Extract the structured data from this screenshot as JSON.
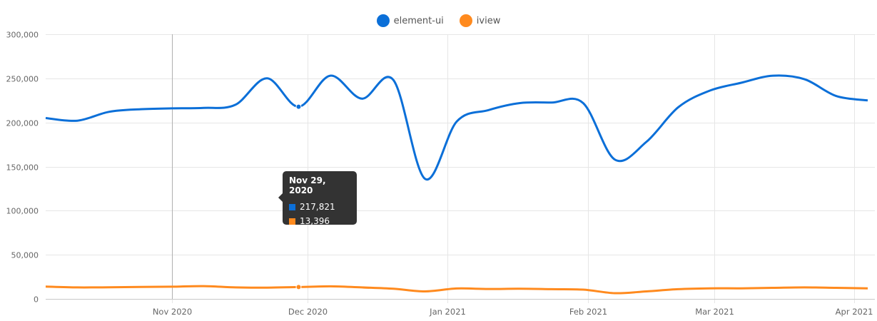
{
  "legend": {
    "series1": "element-ui",
    "series2": "iview"
  },
  "colors": {
    "element_ui": "#0b6fd8",
    "iview": "#ff8a1e",
    "grid": "#e6e6e6",
    "crosshair": "#b0b0b0",
    "tooltip_bg": "#333333"
  },
  "tooltip": {
    "date": "Nov 29, 2020",
    "element_ui": "217,821",
    "iview": "13,396"
  },
  "chart_data": {
    "type": "line",
    "x_ticks": [
      "Nov 2020",
      "Dec 2020",
      "Jan 2021",
      "Feb 2021",
      "Mar 2021",
      "Apr 2021"
    ],
    "x_tick_dates": [
      "2020-11-01",
      "2020-12-01",
      "2021-01-01",
      "2021-02-01",
      "2021-03-01",
      "2021-04-01"
    ],
    "y_ticks": [
      "0",
      "50,000",
      "100,000",
      "150,000",
      "200,000",
      "250,000",
      "300,000"
    ],
    "y_tick_values": [
      0,
      50000,
      100000,
      150000,
      200000,
      250000,
      300000
    ],
    "ylim": [
      0,
      300000
    ],
    "xlim": [
      "2020-10-04",
      "2021-04-04"
    ],
    "grid": true,
    "legend_position": "top-center",
    "highlight_date": "2020-11-29",
    "series": [
      {
        "name": "element-ui",
        "color": "#0b6fd8",
        "points": [
          [
            "2020-10-04",
            205000
          ],
          [
            "2020-10-11",
            202000
          ],
          [
            "2020-10-18",
            212000
          ],
          [
            "2020-10-25",
            215000
          ],
          [
            "2020-11-01",
            216000
          ],
          [
            "2020-11-08",
            216500
          ],
          [
            "2020-11-15",
            220000
          ],
          [
            "2020-11-22",
            250000
          ],
          [
            "2020-11-29",
            217821
          ],
          [
            "2020-12-06",
            253000
          ],
          [
            "2020-12-13",
            227000
          ],
          [
            "2020-12-20",
            248000
          ],
          [
            "2020-12-27",
            136000
          ],
          [
            "2021-01-03",
            201000
          ],
          [
            "2021-01-10",
            214000
          ],
          [
            "2021-01-17",
            222000
          ],
          [
            "2021-01-24",
            222500
          ],
          [
            "2021-01-31",
            222000
          ],
          [
            "2021-02-07",
            158000
          ],
          [
            "2021-02-14",
            178000
          ],
          [
            "2021-02-21",
            217000
          ],
          [
            "2021-02-28",
            236000
          ],
          [
            "2021-03-07",
            245000
          ],
          [
            "2021-03-14",
            253000
          ],
          [
            "2021-03-21",
            249000
          ],
          [
            "2021-03-28",
            230000
          ],
          [
            "2021-04-04",
            225000
          ]
        ]
      },
      {
        "name": "iview",
        "color": "#ff8a1e",
        "points": [
          [
            "2020-10-04",
            14000
          ],
          [
            "2020-10-11",
            13000
          ],
          [
            "2020-10-18",
            13200
          ],
          [
            "2020-10-25",
            13500
          ],
          [
            "2020-11-01",
            13800
          ],
          [
            "2020-11-08",
            14500
          ],
          [
            "2020-11-15",
            13000
          ],
          [
            "2020-11-22",
            12800
          ],
          [
            "2020-11-29",
            13396
          ],
          [
            "2020-12-06",
            14200
          ],
          [
            "2020-12-13",
            13000
          ],
          [
            "2020-12-20",
            11500
          ],
          [
            "2020-12-27",
            8500
          ],
          [
            "2021-01-03",
            11800
          ],
          [
            "2021-01-10",
            11200
          ],
          [
            "2021-01-17",
            11500
          ],
          [
            "2021-01-24",
            11000
          ],
          [
            "2021-01-31",
            10500
          ],
          [
            "2021-02-07",
            6500
          ],
          [
            "2021-02-14",
            8500
          ],
          [
            "2021-02-21",
            11000
          ],
          [
            "2021-02-28",
            12000
          ],
          [
            "2021-03-07",
            12000
          ],
          [
            "2021-03-14",
            12500
          ],
          [
            "2021-03-21",
            13000
          ],
          [
            "2021-03-28",
            12500
          ],
          [
            "2021-04-04",
            12000
          ]
        ]
      }
    ]
  }
}
